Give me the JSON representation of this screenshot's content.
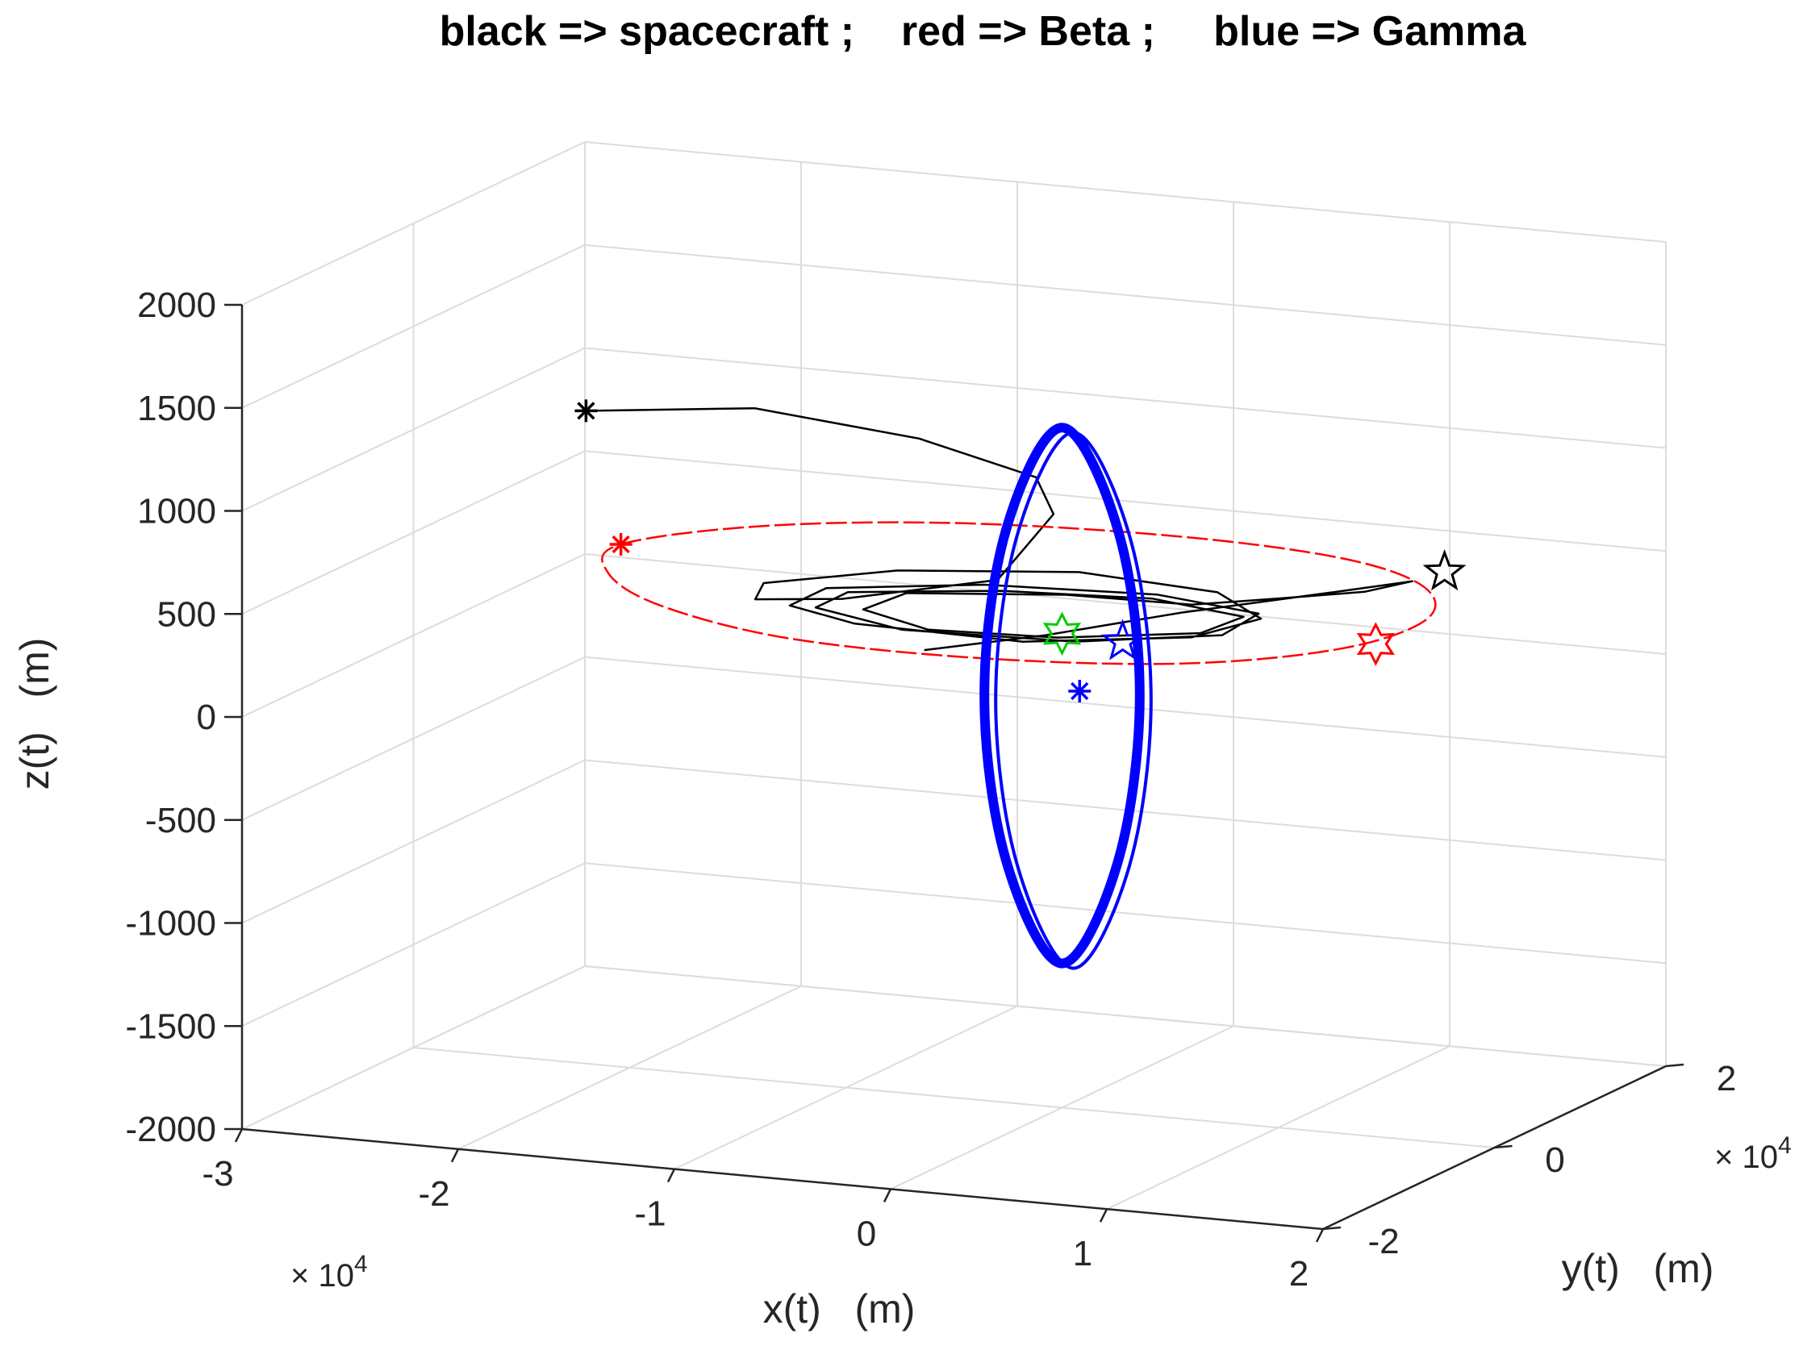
{
  "chart_data": {
    "type": "line",
    "projection": "3d",
    "title": "black => spacecraft ;    red => Beta ;     blue => Gamma",
    "xlabel": "x(t)   (m)",
    "ylabel": "y(t)   (m)",
    "zlabel": "z(t)   (m)",
    "x_multiplier": "× 10",
    "x_multiplier_exp": "4",
    "y_multiplier": "× 10",
    "y_multiplier_exp": "4",
    "xlim": [
      -30000,
      20000
    ],
    "ylim": [
      -20000,
      20000
    ],
    "zlim": [
      -2000,
      2000
    ],
    "x_ticks": [
      -3,
      -2,
      -1,
      0,
      1,
      2
    ],
    "x_tick_labels": [
      "-3",
      "-2",
      "-1",
      "0",
      "1",
      "2"
    ],
    "y_ticks": [
      -2,
      0,
      2
    ],
    "y_tick_labels": [
      "-2",
      "0",
      "2"
    ],
    "z_ticks": [
      -2000,
      -1500,
      -1000,
      -500,
      0,
      500,
      1000,
      1500,
      2000
    ],
    "z_tick_labels": [
      "-2000",
      "-1500",
      "-1000",
      "-500",
      "0",
      "500",
      "1000",
      "1500",
      "2000"
    ],
    "grid": true,
    "colors": {
      "spacecraft": "#000000",
      "beta": "#ff0000",
      "gamma": "#0000ff",
      "center": "#00cc00"
    },
    "series": [
      {
        "color": "#000000",
        "points": [
          [
            -24000,
            5000,
            1050
          ],
          [
            -16000,
            4500,
            1150
          ],
          [
            -8000,
            3500,
            1100
          ],
          [
            -2000,
            2000,
            1000
          ],
          [
            0,
            -1000,
            900
          ],
          [
            -1000,
            -5000,
            650
          ],
          [
            -8000,
            -5500,
            500
          ],
          [
            -13000,
            -3000,
            400
          ],
          [
            -14000,
            500,
            400
          ],
          [
            -9000,
            3500,
            450
          ],
          [
            -1000,
            4500,
            500
          ],
          [
            6000,
            3000,
            500
          ],
          [
            9000,
            500,
            450
          ],
          [
            7000,
            -2500,
            400
          ],
          [
            0,
            -4500,
            350
          ],
          [
            -8000,
            -4000,
            350
          ],
          [
            -12000,
            -1500,
            350
          ],
          [
            -11500,
            1500,
            380
          ],
          [
            -5000,
            3500,
            420
          ],
          [
            3000,
            3500,
            450
          ],
          [
            8500,
            1500,
            450
          ],
          [
            8000,
            -1500,
            400
          ],
          [
            2000,
            -3500,
            350
          ],
          [
            -6000,
            -3500,
            330
          ],
          [
            -11000,
            -1000,
            340
          ],
          [
            -10500,
            1500,
            370
          ],
          [
            -4000,
            3000,
            410
          ],
          [
            3000,
            3000,
            440
          ],
          [
            8000,
            1000,
            440
          ],
          [
            7000,
            -1500,
            400
          ],
          [
            1000,
            -3000,
            350
          ],
          [
            -5000,
            -3000,
            330
          ],
          [
            -9000,
            -500,
            340
          ],
          [
            -8000,
            2000,
            380
          ],
          [
            -1000,
            3000,
            420
          ],
          [
            5000,
            2500,
            440
          ],
          [
            9000,
            3000,
            500
          ],
          [
            13000,
            2500,
            580
          ],
          [
            16000,
            500,
            700
          ],
          [
            14000,
            -3000,
            700
          ],
          [
            8000,
            -6000,
            600
          ],
          [
            2000,
            -7000,
            450
          ],
          [
            -4000,
            -6000,
            300
          ]
        ]
      },
      {
        "color": "#ff0000",
        "points": [
          [
            -21000,
            1500,
            500
          ],
          [
            -16000,
            6000,
            550
          ],
          [
            -8000,
            9000,
            580
          ],
          [
            2000,
            9500,
            600
          ],
          [
            10000,
            8000,
            600
          ],
          [
            15000,
            4500,
            580
          ],
          [
            17000,
            -500,
            540
          ],
          [
            15000,
            -5500,
            480
          ],
          [
            9000,
            -9000,
            420
          ],
          [
            0,
            -10000,
            380
          ],
          [
            -9000,
            -9500,
            380
          ],
          [
            -16000,
            -6500,
            410
          ],
          [
            -20000,
            -2500,
            450
          ]
        ]
      },
      {
        "color": "#0000ff",
        "points": [
          [
            0,
            0,
            1300
          ],
          [
            2200,
            1000,
            800
          ],
          [
            3000,
            1500,
            0
          ],
          [
            2200,
            1000,
            -800
          ],
          [
            0,
            0,
            -1300
          ],
          [
            -2200,
            -1000,
            -800
          ],
          [
            -3000,
            -1500,
            0
          ],
          [
            -2200,
            -1000,
            800
          ]
        ]
      }
    ],
    "markers": [
      {
        "symbol": "*",
        "color": "#000000",
        "point": [
          -24000,
          5000,
          1050
        ]
      },
      {
        "symbol": "*",
        "color": "#ff0000",
        "point": [
          -21000,
          1500,
          500
        ]
      },
      {
        "symbol": "star",
        "color": "#000000",
        "point": [
          16500,
          3000,
          700
        ]
      },
      {
        "symbol": "hexagram",
        "color": "#ff0000",
        "point": [
          15500,
          -2500,
          450
        ]
      },
      {
        "symbol": "star",
        "color": "#0000ff",
        "point": [
          3000,
          -500,
          300
        ]
      },
      {
        "symbol": "*",
        "color": "#0000ff",
        "point": [
          2000,
          -3000,
          100
        ]
      },
      {
        "symbol": "hexagram",
        "color": "#00cc00",
        "point": [
          0,
          0,
          300
        ]
      }
    ]
  }
}
